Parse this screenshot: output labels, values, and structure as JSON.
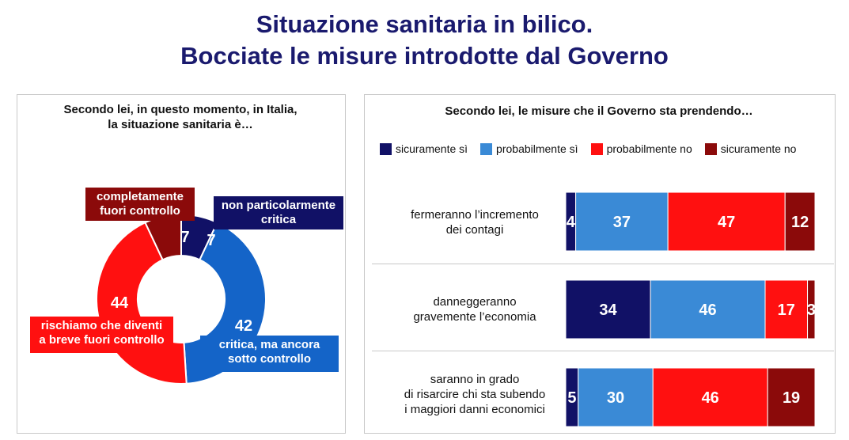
{
  "title_line1": "Situazione sanitaria in bilico.",
  "title_line2": "Bocciate le misure introdotte dal Governo",
  "colors": {
    "title": "#1a1a6e",
    "sicuramente_si": "#111166",
    "probabilmente_si": "#3a8ad6",
    "probabilmente_no": "#ff1010",
    "sicuramente_no": "#8b0a0a",
    "critica_sotto_controllo": "#1464c8"
  },
  "left_panel": {
    "title_line1": "Secondo lei, in questo momento, in Italia,",
    "title_line2": "la situazione sanitaria è…",
    "labels": {
      "completamente": [
        "completamente",
        "fuori controllo"
      ],
      "non_particolarmente": [
        "non particolarmente",
        "critica"
      ],
      "rischiamo": [
        "rischiamo che diventi",
        "a breve fuori controllo"
      ],
      "critica": [
        "critica, ma ancora",
        "sotto controllo"
      ]
    }
  },
  "right_panel": {
    "title": "Secondo lei, le misure che il Governo sta prendendo…",
    "rows": [
      [
        "fermeranno l’incremento",
        "dei contagi"
      ],
      [
        "danneggeranno",
        "gravemente l’economia"
      ],
      [
        "saranno in grado",
        "di risarcire chi sta subendo",
        "i maggiori danni economici"
      ]
    ]
  },
  "chart_data": [
    {
      "type": "pie",
      "title": "Secondo lei, in questo momento, in Italia, la situazione sanitaria è…",
      "categories": [
        "non particolarmente critica",
        "critica, ma ancora sotto controllo",
        "rischiamo che diventi a breve fuori controllo",
        "completamente fuori controllo"
      ],
      "values": [
        7,
        42,
        44,
        7
      ],
      "colors": [
        "#111166",
        "#1464c8",
        "#ff1010",
        "#8b0a0a"
      ]
    },
    {
      "type": "bar",
      "orientation": "horizontal",
      "stacked": true,
      "title": "Secondo lei, le misure che il Governo sta prendendo…",
      "legend": "top",
      "categories": [
        "fermeranno l’incremento dei contagi",
        "danneggeranno gravemente l’economia",
        "saranno in grado di risarcire chi sta subendo i maggiori danni economici"
      ],
      "series": [
        {
          "name": "sicuramente sì",
          "values": [
            4,
            34,
            5
          ],
          "color": "#111166"
        },
        {
          "name": "probabilmente sì",
          "values": [
            37,
            46,
            30
          ],
          "color": "#3a8ad6"
        },
        {
          "name": "probabilmente no",
          "values": [
            47,
            17,
            46
          ],
          "color": "#ff1010"
        },
        {
          "name": "sicuramente no",
          "values": [
            12,
            3,
            19
          ],
          "color": "#8b0a0a"
        }
      ]
    }
  ]
}
